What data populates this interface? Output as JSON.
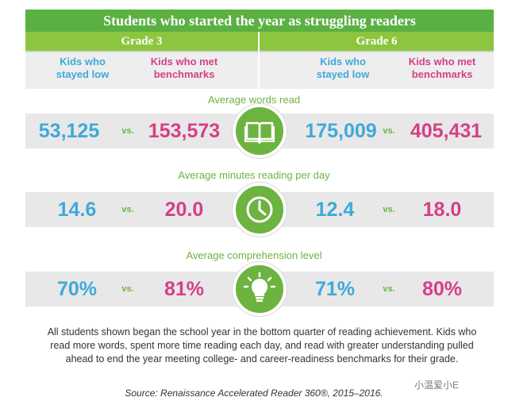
{
  "title": "Students who started the year as struggling readers",
  "grades": [
    {
      "label": "Grade 3",
      "low_label": "Kids who stayed low",
      "met_label": "Kids who met benchmarks"
    },
    {
      "label": "Grade 6",
      "low_label": "Kids who stayed low",
      "met_label": "Kids who met benchmarks"
    }
  ],
  "vs_text": "vs.",
  "metrics": [
    {
      "label": "Average words read",
      "icon": "book-icon",
      "g3_low": "53,125",
      "g3_met": "153,573",
      "g6_low": "175,009",
      "g6_met": "405,431"
    },
    {
      "label": "Average minutes reading per day",
      "icon": "clock-icon",
      "g3_low": "14.6",
      "g3_met": "20.0",
      "g6_low": "12.4",
      "g6_met": "18.0"
    },
    {
      "label": "Average comprehension level",
      "icon": "lightbulb-icon",
      "g3_low": "70%",
      "g3_met": "81%",
      "g6_low": "71%",
      "g6_met": "80%"
    }
  ],
  "footnote": "All students shown began the school year in the bottom quarter of reading achievement. Kids who read more words, spent more time reading each day, and read with greater understanding pulled ahead to end the year meeting college- and career-readiness benchmarks for their grade.",
  "source": "Source: Renaissance Accelerated Reader 360®, 2015–2016.",
  "watermark": "小温爱小E",
  "colors": {
    "green": "#6db33f",
    "blue": "#3fa9d9",
    "pink": "#d63f86"
  }
}
